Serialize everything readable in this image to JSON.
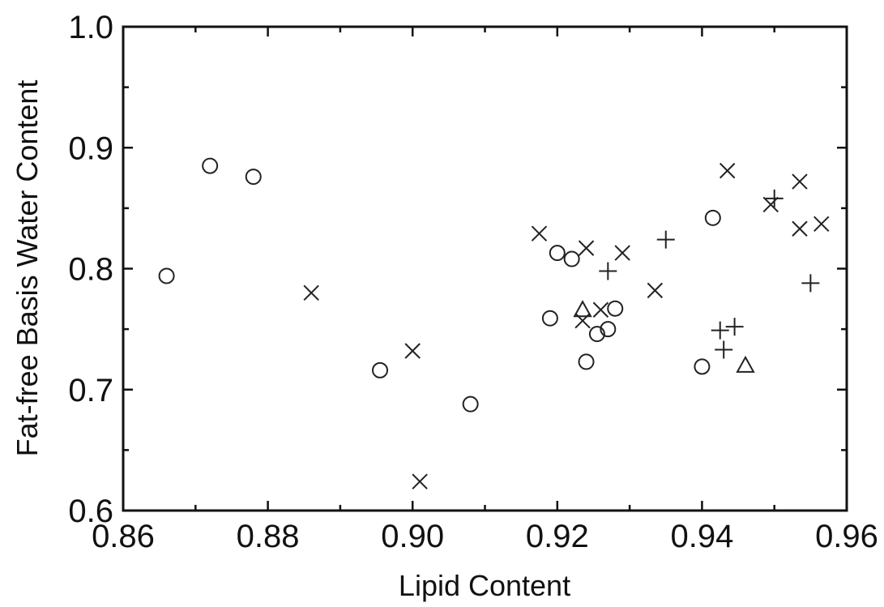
{
  "chart_data": {
    "type": "scatter",
    "title": "",
    "xlabel": "Lipid Content",
    "ylabel": "Fat-free Basis Water Content",
    "xlim": [
      0.86,
      0.96
    ],
    "ylim": [
      0.6,
      1.0
    ],
    "x_ticks": [
      "0.86",
      "0.88",
      "0.90",
      "0.92",
      "0.94",
      "0.96"
    ],
    "y_ticks": [
      "0.6",
      "0.7",
      "0.8",
      "0.9",
      "1.0"
    ],
    "grid": false,
    "legend": "none",
    "series": [
      {
        "marker": "circle",
        "points": [
          [
            0.866,
            0.794
          ],
          [
            0.872,
            0.885
          ],
          [
            0.878,
            0.876
          ],
          [
            0.8955,
            0.716
          ],
          [
            0.908,
            0.688
          ],
          [
            0.919,
            0.759
          ],
          [
            0.92,
            0.813
          ],
          [
            0.922,
            0.808
          ],
          [
            0.924,
            0.723
          ],
          [
            0.9255,
            0.746
          ],
          [
            0.927,
            0.75
          ],
          [
            0.928,
            0.767
          ],
          [
            0.94,
            0.719
          ],
          [
            0.9415,
            0.842
          ]
        ]
      },
      {
        "marker": "x",
        "points": [
          [
            0.886,
            0.78
          ],
          [
            0.9,
            0.732
          ],
          [
            0.901,
            0.624
          ],
          [
            0.9175,
            0.829
          ],
          [
            0.9235,
            0.757
          ],
          [
            0.924,
            0.817
          ],
          [
            0.926,
            0.766
          ],
          [
            0.929,
            0.813
          ],
          [
            0.9335,
            0.782
          ],
          [
            0.9435,
            0.881
          ],
          [
            0.9495,
            0.853
          ],
          [
            0.9535,
            0.872
          ],
          [
            0.9535,
            0.833
          ],
          [
            0.9565,
            0.837
          ]
        ]
      },
      {
        "marker": "plus",
        "points": [
          [
            0.927,
            0.798
          ],
          [
            0.935,
            0.824
          ],
          [
            0.9425,
            0.749
          ],
          [
            0.943,
            0.733
          ],
          [
            0.9445,
            0.752
          ],
          [
            0.95,
            0.858
          ],
          [
            0.955,
            0.788
          ]
        ]
      },
      {
        "marker": "triangle",
        "points": [
          [
            0.9235,
            0.766
          ],
          [
            0.946,
            0.72
          ]
        ]
      }
    ]
  }
}
